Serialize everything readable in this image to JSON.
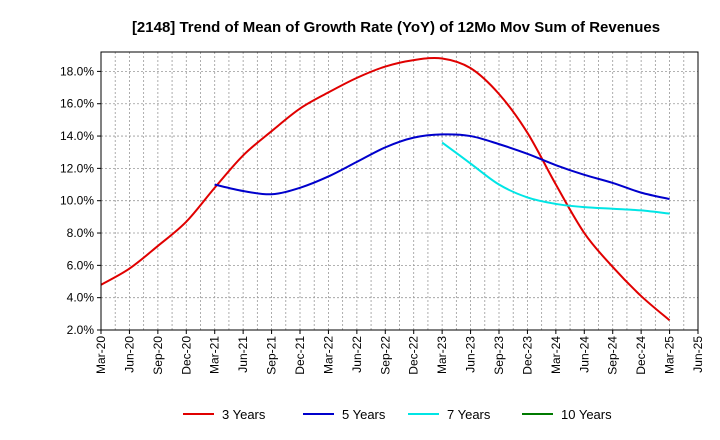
{
  "chart_data": {
    "type": "line",
    "title": "[2148]  Trend of Mean of Growth Rate (YoY) of 12Mo Mov Sum of Revenues",
    "xlabel": "",
    "ylabel": "",
    "categories": [
      "Mar-20",
      "Jun-20",
      "Sep-20",
      "Dec-20",
      "Mar-21",
      "Jun-21",
      "Sep-21",
      "Dec-21",
      "Mar-22",
      "Jun-22",
      "Sep-22",
      "Dec-22",
      "Mar-23",
      "Jun-23",
      "Sep-23",
      "Dec-23",
      "Mar-24",
      "Jun-24",
      "Sep-24",
      "Dec-24",
      "Mar-25",
      "Jun-25"
    ],
    "y_ticks": [
      "2.0%",
      "4.0%",
      "6.0%",
      "8.0%",
      "10.0%",
      "12.0%",
      "14.0%",
      "16.0%",
      "18.0%"
    ],
    "ylim": [
      2.0,
      19.2
    ],
    "grid": true,
    "legend_position": "bottom",
    "series": [
      {
        "name": "3 Years",
        "color": "#e00000",
        "values": [
          4.8,
          5.8,
          7.2,
          8.7,
          10.8,
          12.8,
          14.3,
          15.7,
          16.7,
          17.6,
          18.3,
          18.7,
          18.8,
          18.2,
          16.6,
          14.2,
          11.0,
          8.0,
          5.9,
          4.1,
          2.6,
          null
        ]
      },
      {
        "name": "5 Years",
        "color": "#0000cc",
        "values": [
          null,
          null,
          null,
          null,
          11.0,
          10.6,
          10.4,
          10.8,
          11.5,
          12.4,
          13.3,
          13.9,
          14.1,
          14.0,
          13.5,
          12.9,
          12.2,
          11.6,
          11.1,
          10.5,
          10.1,
          null
        ]
      },
      {
        "name": "7 Years",
        "color": "#00e5e5",
        "values": [
          null,
          null,
          null,
          null,
          null,
          null,
          null,
          null,
          null,
          null,
          null,
          null,
          13.6,
          12.3,
          11.0,
          10.2,
          9.8,
          9.6,
          9.5,
          9.4,
          9.2,
          null
        ]
      },
      {
        "name": "10 Years",
        "color": "#007a00",
        "values": [
          null,
          null,
          null,
          null,
          null,
          null,
          null,
          null,
          null,
          null,
          null,
          null,
          null,
          null,
          null,
          null,
          null,
          null,
          null,
          null,
          null,
          null
        ]
      }
    ]
  }
}
